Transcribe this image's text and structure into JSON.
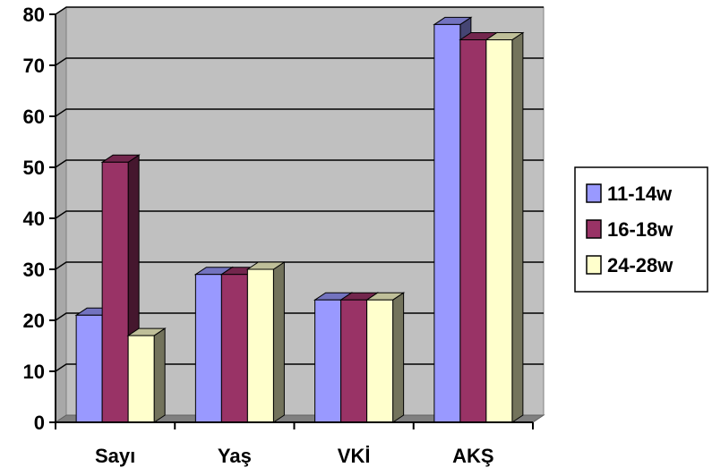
{
  "chart_data": {
    "type": "bar",
    "style": "3d-clustered-column",
    "title": "",
    "xlabel": "",
    "ylabel": "",
    "categories": [
      "Sayı",
      "Yaş",
      "VKİ",
      "AKŞ"
    ],
    "series": [
      {
        "name": "11-14w",
        "values": [
          21,
          29,
          24,
          78
        ],
        "color": "#9999FF"
      },
      {
        "name": "16-18w",
        "values": [
          51,
          29,
          24,
          75
        ],
        "color": "#993366"
      },
      {
        "name": "24-28w",
        "values": [
          17,
          30,
          24,
          75
        ],
        "color": "#FFFFCC"
      }
    ],
    "ylim": [
      0,
      80
    ],
    "yticks": [
      0,
      10,
      20,
      30,
      40,
      50,
      60,
      70,
      80
    ],
    "grid": true,
    "plot_background": "#C0C0C0",
    "legend_position": "right"
  }
}
